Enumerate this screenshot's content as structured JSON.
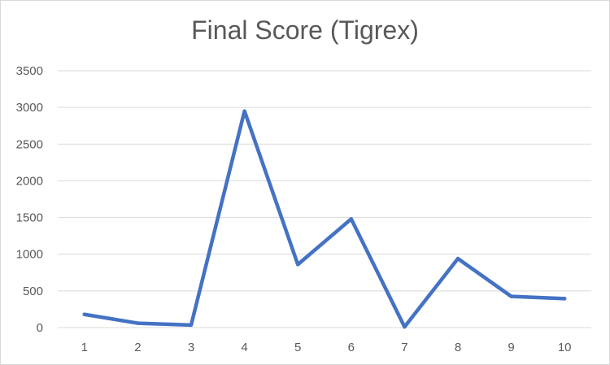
{
  "chart_data": {
    "type": "line",
    "title": "Final Score (Tigrex)",
    "xlabel": "",
    "ylabel": "",
    "categories": [
      "1",
      "2",
      "3",
      "4",
      "5",
      "6",
      "7",
      "8",
      "9",
      "10"
    ],
    "series": [
      {
        "values": [
          180,
          60,
          35,
          2950,
          860,
          1480,
          10,
          940,
          425,
          395
        ],
        "color": "#4472c4"
      }
    ],
    "ylim": [
      0,
      3500
    ],
    "yticks": [
      0,
      500,
      1000,
      1500,
      2000,
      2500,
      3000,
      3500
    ],
    "grid": true,
    "legend": "none"
  }
}
